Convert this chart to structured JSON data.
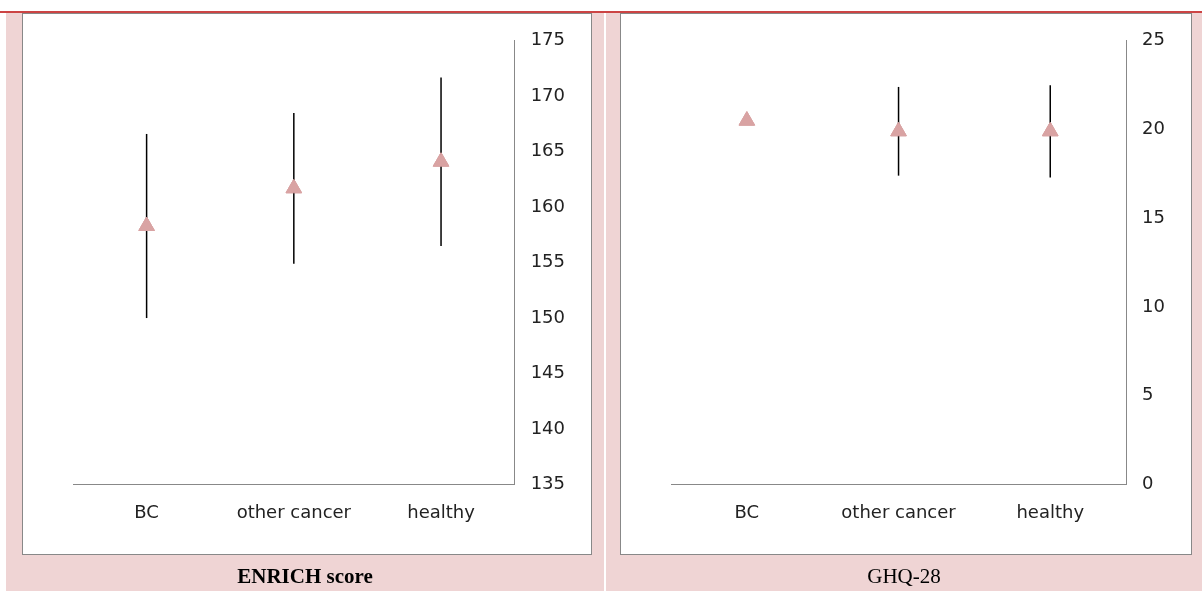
{
  "chart_data": [
    {
      "type": "scatter",
      "title": "ENRICH score",
      "categories": [
        "BC",
        "other cancer",
        "healthy"
      ],
      "values": [
        158.3,
        161.7,
        164.1
      ],
      "errors": [
        8.3,
        6.8,
        7.6
      ],
      "color": "#d9a3a3",
      "marker": "triangle",
      "ylim": [
        135,
        175
      ],
      "yticks": [
        135,
        140,
        145,
        150,
        155,
        160,
        165,
        170,
        175
      ]
    },
    {
      "type": "scatter",
      "title": "GHQ-28",
      "categories": [
        "BC",
        "other cancer",
        "healthy"
      ],
      "values": [
        20.5,
        19.9,
        19.9
      ],
      "errors": [
        null,
        2.5,
        2.6
      ],
      "color": "#d9a3a3",
      "marker": "triangle",
      "ylim": [
        0,
        25
      ],
      "yticks": [
        0,
        5,
        10,
        15,
        20,
        25
      ]
    }
  ]
}
